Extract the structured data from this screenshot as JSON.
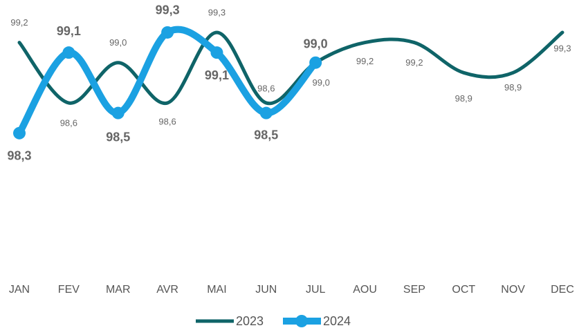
{
  "chart_data": {
    "type": "line",
    "categories": [
      "JAN",
      "FEV",
      "MAR",
      "AVR",
      "MAI",
      "JUN",
      "JUL",
      "AOU",
      "SEP",
      "OCT",
      "NOV",
      "DEC"
    ],
    "ylim": [
      97,
      99.4
    ],
    "series": [
      {
        "name": "2023",
        "color": "#0f6468",
        "values": [
          99.2,
          98.6,
          99.0,
          98.6,
          99.3,
          98.6,
          99.0,
          99.2,
          99.2,
          98.9,
          98.9,
          99.3
        ],
        "value_labels": [
          "99,2",
          "98,6",
          "99,0",
          "98,6",
          "99,3",
          "98,6",
          "99,0",
          "99,2",
          "99,2",
          "98,9",
          "98,9",
          "99,3"
        ]
      },
      {
        "name": "2024",
        "color": "#1ba1e2",
        "values": [
          98.3,
          99.1,
          98.5,
          99.3,
          99.1,
          98.5,
          99.0,
          null,
          null,
          null,
          null,
          null
        ],
        "value_labels": [
          "98,3",
          "99,1",
          "98,5",
          "99,3",
          "99,1",
          "98,5",
          "99,0",
          null,
          null,
          null,
          null,
          null
        ]
      }
    ]
  }
}
